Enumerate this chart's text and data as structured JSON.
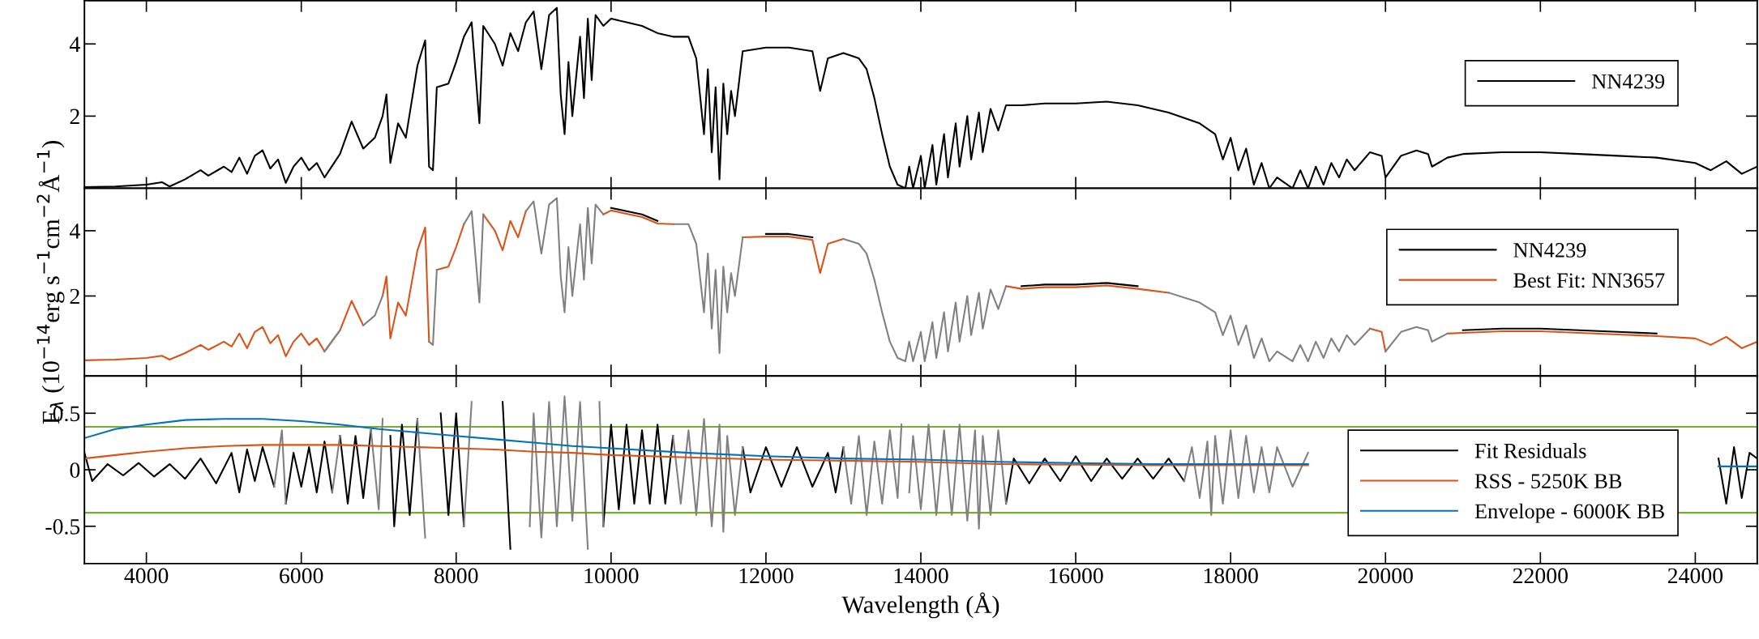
{
  "chart_data": [
    {
      "type": "line",
      "xlim": [
        3200,
        24800
      ],
      "ylim": [
        0,
        5.2
      ],
      "xticks": [
        4000,
        6000,
        8000,
        10000,
        12000,
        14000,
        16000,
        18000,
        20000,
        22000,
        24000
      ],
      "yticks": [
        2,
        4
      ],
      "tick_labels": "y",
      "legend": "right",
      "series": [
        {
          "name": "NN4239",
          "color": "#000000",
          "x": [
            3200,
            3600,
            4000,
            4200,
            4300,
            4500,
            4700,
            4800,
            5000,
            5100,
            5200,
            5300,
            5400,
            5500,
            5600,
            5700,
            5800,
            5900,
            6000,
            6100,
            6200,
            6300,
            6500,
            6650,
            6800,
            6950,
            7050,
            7100,
            7150,
            7250,
            7350,
            7500,
            7600,
            7650,
            7700,
            7750,
            7900,
            8000,
            8100,
            8200,
            8300,
            8350,
            8500,
            8600,
            8700,
            8800,
            8900,
            9000,
            9100,
            9200,
            9300,
            9350,
            9400,
            9450,
            9500,
            9600,
            9650,
            9700,
            9750,
            9800,
            9900,
            10000,
            10200,
            10400,
            10600,
            10800,
            11000,
            11100,
            11200,
            11250,
            11300,
            11350,
            11400,
            11450,
            11500,
            11550,
            11600,
            11700,
            12000,
            12300,
            12600,
            12700,
            12800,
            13000,
            13200,
            13300,
            13400,
            13500,
            13600,
            13700,
            13800,
            13850,
            13900,
            14000,
            14050,
            14150,
            14200,
            14300,
            14350,
            14450,
            14500,
            14600,
            14650,
            14750,
            14800,
            14900,
            15000,
            15100,
            15300,
            15600,
            16000,
            16400,
            16800,
            17200,
            17600,
            17800,
            17900,
            18000,
            18100,
            18200,
            18300,
            18400,
            18500,
            18600,
            18800,
            18900,
            19000,
            19100,
            19200,
            19300,
            19400,
            19500,
            19600,
            19800,
            19950,
            20000,
            20200,
            20400,
            20550,
            20600,
            20800,
            21000,
            21500,
            22000,
            22500,
            23000,
            23500,
            24000,
            24200,
            24400,
            24600,
            24800
          ],
          "values": [
            0.03,
            0.05,
            0.1,
            0.17,
            0.05,
            0.25,
            0.5,
            0.35,
            0.6,
            0.45,
            0.85,
            0.4,
            0.9,
            1.05,
            0.55,
            0.8,
            0.15,
            0.6,
            0.85,
            0.5,
            0.7,
            0.3,
            0.95,
            1.85,
            1.1,
            1.4,
            2.0,
            2.6,
            0.7,
            1.8,
            1.4,
            3.4,
            4.1,
            0.6,
            0.5,
            2.8,
            2.9,
            3.5,
            4.2,
            4.6,
            1.8,
            4.5,
            4.0,
            3.4,
            4.3,
            3.8,
            4.6,
            4.9,
            3.3,
            4.8,
            5.0,
            2.6,
            1.5,
            3.5,
            2.0,
            4.2,
            2.5,
            4.7,
            3.0,
            4.8,
            4.5,
            4.7,
            4.6,
            4.5,
            4.3,
            4.2,
            4.2,
            3.6,
            1.5,
            3.3,
            1.0,
            2.8,
            0.25,
            2.9,
            1.5,
            2.7,
            2.0,
            3.8,
            3.9,
            3.9,
            3.8,
            2.7,
            3.6,
            3.75,
            3.6,
            3.3,
            2.5,
            1.5,
            0.6,
            0.1,
            0.0,
            0.6,
            0.0,
            0.9,
            0.0,
            1.2,
            0.1,
            1.5,
            0.3,
            1.8,
            0.6,
            2.0,
            0.8,
            2.1,
            1.0,
            2.2,
            1.6,
            2.3,
            2.3,
            2.35,
            2.35,
            2.4,
            2.3,
            2.1,
            1.8,
            1.5,
            0.8,
            1.4,
            0.5,
            1.1,
            0.1,
            0.7,
            0.0,
            0.3,
            0.0,
            0.5,
            0.0,
            0.6,
            0.1,
            0.7,
            0.3,
            0.8,
            0.5,
            1.0,
            0.9,
            0.3,
            0.9,
            1.05,
            0.95,
            0.6,
            0.85,
            0.95,
            1.0,
            1.0,
            0.95,
            0.9,
            0.85,
            0.7,
            0.5,
            0.75,
            0.4,
            0.6
          ]
        }
      ]
    },
    {
      "type": "line",
      "xlim": [
        3200,
        24800
      ],
      "ylim": [
        -0.45,
        5.3
      ],
      "xticks": [
        4000,
        6000,
        8000,
        10000,
        12000,
        14000,
        16000,
        18000,
        20000,
        22000,
        24000
      ],
      "yticks": [
        2,
        4
      ],
      "tick_labels": "y",
      "legend": "right",
      "ylabel": "F$_{λ}$ (10$^{−14}$erg s$^{−1}$cm$^{−2}$Å$^{−1}$)",
      "series": [
        {
          "name": "NN4239",
          "color": "#000000",
          "x": [
            10000,
            10200,
            10400,
            10600,
            11500,
            12000,
            12300,
            12600,
            14000,
            15300,
            15600,
            16000,
            16400,
            16800,
            20000,
            21000,
            21500,
            22000,
            22500,
            23000,
            23500
          ],
          "values": [
            4.7,
            4.6,
            4.5,
            4.3,
            null,
            3.9,
            3.9,
            3.8,
            null,
            2.3,
            2.35,
            2.35,
            2.4,
            2.3,
            null,
            0.95,
            1.0,
            1.0,
            0.95,
            0.9,
            0.85
          ]
        },
        {
          "name": "Best Fit: NN3657",
          "color": "#d95319",
          "x": [
            3200,
            3600,
            4000,
            4200,
            4300,
            4500,
            4700,
            4800,
            5000,
            5100,
            5200,
            5300,
            5400,
            5500,
            5600,
            5700,
            5800,
            5900,
            6000,
            6100,
            6200,
            6300,
            6500,
            6650,
            6800,
            6950,
            7050,
            7100,
            7150,
            7250,
            7350,
            7500,
            7600,
            7650,
            7700,
            7750,
            7900,
            8000,
            8100,
            8200,
            8300,
            8350,
            8500,
            8600,
            8700,
            8800,
            8900,
            9000,
            9100,
            9200,
            9300,
            9350,
            9400,
            9450,
            9500,
            9600,
            9650,
            9700,
            9750,
            9800,
            9900,
            10000,
            10200,
            10400,
            10600,
            10800,
            11000,
            11100,
            11200,
            11250,
            11300,
            11350,
            11400,
            11450,
            11500,
            11550,
            11600,
            11700,
            12000,
            12300,
            12600,
            12700,
            12800,
            13000,
            13200,
            13300,
            13400,
            13500,
            13600,
            13700,
            13800,
            13850,
            13900,
            14000,
            14050,
            14150,
            14200,
            14300,
            14350,
            14450,
            14500,
            14600,
            14650,
            14750,
            14800,
            14900,
            15000,
            15100,
            15300,
            15600,
            16000,
            16400,
            16800,
            17200,
            17600,
            17800,
            17900,
            18000,
            18100,
            18200,
            18300,
            18400,
            18500,
            18600,
            18800,
            18900,
            19000,
            19100,
            19200,
            19300,
            19400,
            19500,
            19600,
            19800,
            19950,
            20000,
            20200,
            20400,
            20550,
            20600,
            20800,
            21000,
            21500,
            22000,
            22500,
            23000,
            23500,
            24000,
            24200,
            24400,
            24600,
            24800
          ],
          "values": [
            0.03,
            0.05,
            0.1,
            0.17,
            0.05,
            0.25,
            0.5,
            0.35,
            0.6,
            0.45,
            0.85,
            0.4,
            0.9,
            1.05,
            0.55,
            0.8,
            0.15,
            0.6,
            0.85,
            0.5,
            0.7,
            0.3,
            0.95,
            1.85,
            1.1,
            null,
            2.0,
            2.6,
            0.7,
            1.8,
            1.4,
            3.4,
            4.1,
            0.6,
            null,
            2.8,
            2.9,
            3.5,
            4.2,
            null,
            null,
            4.5,
            4.0,
            3.4,
            4.3,
            3.8,
            4.6,
            null,
            null,
            null,
            null,
            null,
            null,
            null,
            null,
            null,
            null,
            null,
            null,
            null,
            4.5,
            4.62,
            4.52,
            4.42,
            4.22,
            4.2,
            null,
            null,
            null,
            null,
            null,
            null,
            null,
            null,
            null,
            null,
            null,
            3.8,
            3.82,
            3.82,
            3.72,
            2.7,
            3.6,
            3.75,
            null,
            null,
            null,
            null,
            null,
            null,
            null,
            null,
            null,
            null,
            null,
            null,
            null,
            null,
            null,
            null,
            null,
            null,
            null,
            null,
            null,
            null,
            null,
            2.3,
            2.22,
            2.27,
            2.27,
            2.32,
            2.22,
            2.1,
            null,
            null,
            null,
            null,
            null,
            null,
            null,
            null,
            null,
            null,
            null,
            null,
            null,
            null,
            null,
            null,
            null,
            null,
            null,
            1.0,
            0.9,
            0.3,
            null,
            null,
            null,
            null,
            0.85,
            0.87,
            0.92,
            0.92,
            0.87,
            0.82,
            0.77,
            0.7,
            0.5,
            0.75,
            0.4,
            0.6
          ]
        },
        {
          "color": "#808080",
          "x": [
            6300,
            6500,
            6600,
            6800,
            6950,
            7050,
            7300,
            7650,
            7700,
            7750,
            7900,
            8100,
            8200,
            8300,
            8350,
            8600,
            8900,
            9000,
            9100,
            9200,
            9300,
            9350,
            9400,
            9450,
            9500,
            9600,
            9650,
            9700,
            9750,
            9800,
            9900,
            10300,
            10800,
            11000,
            11100,
            11200,
            11250,
            11300,
            11350,
            11400,
            11450,
            11500,
            11550,
            11600,
            11700,
            12300,
            13000,
            13200,
            13300,
            13400,
            13500,
            13600,
            13700,
            13800,
            13850,
            13900,
            14000,
            14050,
            14150,
            14200,
            14300,
            14350,
            14450,
            14500,
            14600,
            14650,
            14750,
            14800,
            14900,
            15000,
            15100,
            16000,
            17200,
            17600,
            17800,
            17900,
            18000,
            18100,
            18200,
            18300,
            18400,
            18500,
            18600,
            18800,
            18900,
            19000,
            19100,
            19200,
            19300,
            19400,
            19500,
            19600,
            19800,
            19900,
            20000,
            20200,
            20400,
            20550,
            20600,
            20800
          ],
          "values": [
            0.3,
            0.95,
            null,
            1.1,
            1.4,
            2.0,
            null,
            0.6,
            0.5,
            2.8,
            null,
            4.2,
            4.6,
            1.8,
            4.5,
            null,
            4.6,
            4.9,
            3.3,
            4.8,
            5.0,
            2.6,
            1.5,
            3.5,
            2.0,
            4.2,
            2.5,
            4.7,
            3.0,
            4.8,
            4.5,
            null,
            4.2,
            4.2,
            3.6,
            1.5,
            3.3,
            1.0,
            2.8,
            0.25,
            2.9,
            1.5,
            2.7,
            2.0,
            3.8,
            null,
            3.75,
            3.6,
            3.3,
            2.5,
            1.5,
            0.6,
            0.1,
            0.0,
            0.6,
            0.0,
            0.9,
            0.0,
            1.2,
            0.1,
            1.5,
            0.3,
            1.8,
            0.6,
            2.0,
            0.8,
            2.1,
            1.0,
            2.2,
            1.6,
            2.3,
            null,
            2.1,
            1.8,
            1.5,
            0.8,
            1.4,
            0.5,
            1.1,
            0.1,
            0.7,
            0.0,
            0.3,
            0.0,
            0.5,
            0.0,
            0.6,
            0.1,
            0.7,
            0.3,
            0.8,
            0.5,
            1.0,
            null,
            0.3,
            0.9,
            1.05,
            0.95,
            0.6,
            0.85
          ]
        }
      ]
    },
    {
      "type": "line",
      "xlim": [
        3200,
        24800
      ],
      "ylim": [
        -0.83,
        0.83
      ],
      "xticks": [
        4000,
        6000,
        8000,
        10000,
        12000,
        14000,
        16000,
        18000,
        20000,
        22000,
        24000
      ],
      "yticks": [
        -0.5,
        0,
        0.5
      ],
      "legend": "right",
      "xlabel": "Wavelength (Å)",
      "ref_lines": [
        {
          "axis": "y",
          "value": 0.38,
          "color": "#77ac30"
        },
        {
          "axis": "y",
          "value": -0.38,
          "color": "#77ac30"
        }
      ],
      "series": [
        {
          "name": "Fit Residuals",
          "color": "#000000",
          "x": [
            3200,
            3300,
            3500,
            3700,
            3900,
            4100,
            4300,
            4500,
            4700,
            4900,
            5100,
            5200,
            5300,
            5400,
            5500,
            5650,
            5750,
            5800,
            5900,
            6000,
            6100,
            6200,
            6300,
            6400,
            6450,
            6500,
            6600,
            6700,
            6800,
            6900,
            7000,
            7050,
            7100,
            7150,
            7200,
            7300,
            7400,
            7500,
            7600,
            7750,
            7800,
            7900,
            8000,
            8100,
            8200,
            8400,
            8500,
            8550,
            8600,
            8700,
            8800,
            8850,
            8900,
            9400,
            9900,
            10000,
            10100,
            10200,
            10300,
            10400,
            10500,
            10600,
            10700,
            10800,
            11200,
            11700,
            11800,
            12000,
            12200,
            12400,
            12600,
            12800,
            12900,
            13000,
            14000,
            15100,
            15200,
            15400,
            15600,
            15800,
            16000,
            16200,
            16400,
            16600,
            16800,
            17000,
            17200,
            17400,
            20000,
            24300,
            24400,
            24500,
            24600,
            24700,
            24800
          ],
          "values": [
            0.15,
            -0.1,
            0.05,
            -0.05,
            0.06,
            -0.06,
            0.05,
            -0.08,
            0.1,
            -0.12,
            0.15,
            -0.2,
            0.18,
            -0.1,
            0.2,
            -0.15,
            null,
            -0.3,
            0.15,
            -0.15,
            0.2,
            -0.2,
            0.25,
            -0.2,
            null,
            0.3,
            -0.3,
            0.3,
            -0.25,
            0.35,
            null,
            null,
            null,
            0.3,
            -0.5,
            0.4,
            -0.4,
            0.45,
            null,
            null,
            0.5,
            -0.4,
            0.5,
            -0.5,
            null,
            null,
            null,
            null,
            0.6,
            -0.7,
            null,
            null,
            null,
            null,
            -0.5,
            0.4,
            -0.35,
            0.4,
            -0.3,
            0.35,
            -0.3,
            0.4,
            -0.3,
            0.3,
            null,
            0.2,
            -0.2,
            0.2,
            -0.15,
            0.2,
            -0.15,
            0.15,
            -0.2,
            0.2,
            null,
            -0.3,
            0.1,
            -0.12,
            0.1,
            -0.1,
            0.12,
            -0.1,
            0.1,
            -0.08,
            0.1,
            -0.08,
            0.1,
            -0.1,
            null,
            0.1,
            -0.3,
            0.2,
            -0.25,
            0.15,
            0.1
          ]
        },
        {
          "color": "#808080",
          "x": [
            5650,
            5750,
            5800,
            6100,
            6400,
            6500,
            6700,
            6900,
            7000,
            7050,
            7300,
            7500,
            7600,
            7700,
            7750,
            7900,
            8100,
            8200,
            8300,
            8350,
            8400,
            8600,
            8900,
            8950,
            9000,
            9100,
            9200,
            9300,
            9400,
            9500,
            9600,
            9700,
            9750,
            9800,
            9850,
            9900,
            10300,
            10800,
            10900,
            11000,
            11100,
            11200,
            11300,
            11400,
            11450,
            11500,
            11600,
            11700,
            12300,
            13000,
            13100,
            13200,
            13300,
            13400,
            13500,
            13600,
            13700,
            13750,
            13800,
            13850,
            13900,
            14000,
            14100,
            14200,
            14300,
            14400,
            14500,
            14600,
            14700,
            14750,
            14800,
            14900,
            15000,
            15100,
            16000,
            17400,
            17500,
            17600,
            17700,
            17750,
            17800,
            17900,
            18000,
            18100,
            18200,
            18300,
            18400,
            18500,
            18600,
            18800,
            19000
          ],
          "values": [
            -0.15,
            0.35,
            -0.3,
            null,
            -0.2,
            0.3,
            null,
            0.35,
            -0.35,
            0.45,
            null,
            0.45,
            -0.6,
            null,
            null,
            null,
            -0.5,
            0.6,
            null,
            null,
            null,
            null,
            null,
            -0.5,
            0.5,
            -0.6,
            0.6,
            -0.5,
            0.65,
            -0.45,
            0.6,
            -0.7,
            null,
            null,
            0.6,
            -0.5,
            null,
            0.3,
            -0.3,
            0.35,
            -0.4,
            0.45,
            -0.5,
            0.4,
            -0.55,
            0.3,
            -0.4,
            0.2,
            null,
            0.2,
            -0.3,
            0.3,
            -0.4,
            0.25,
            -0.3,
            0.35,
            -0.25,
            0.4,
            null,
            -0.2,
            0.3,
            -0.35,
            0.4,
            -0.4,
            0.35,
            -0.4,
            0.4,
            -0.45,
            0.35,
            -0.52,
            0.3,
            -0.4,
            0.35,
            -0.3,
            null,
            -0.1,
            0.2,
            -0.25,
            0.25,
            -0.4,
            0.3,
            -0.3,
            0.35,
            -0.25,
            0.3,
            -0.2,
            0.2,
            -0.2,
            0.2,
            -0.15,
            0.15
          ]
        },
        {
          "name": "RSS - 5250K BB",
          "color": "#d95319",
          "x": [
            3200,
            3600,
            4000,
            4500,
            5000,
            5500,
            6000,
            6500,
            7000,
            7500,
            8000,
            8500,
            9000,
            9500,
            10000,
            11000,
            12000,
            13000,
            14000,
            15000,
            16000,
            17000,
            18000,
            19000
          ],
          "values": [
            0.1,
            0.13,
            0.16,
            0.19,
            0.21,
            0.22,
            0.22,
            0.22,
            0.21,
            0.2,
            0.19,
            0.18,
            0.16,
            0.15,
            0.13,
            0.11,
            0.09,
            0.08,
            0.07,
            0.05,
            0.045,
            0.04,
            0.04,
            0.04
          ]
        },
        {
          "name": "Envelope - 6000K BB",
          "color": "#0072bd",
          "x": [
            3200,
            3600,
            4000,
            4500,
            5000,
            5500,
            6000,
            6500,
            7000,
            7500,
            8000,
            8500,
            9000,
            9500,
            10000,
            11000,
            12000,
            13000,
            14000,
            15000,
            16000,
            17000,
            18000,
            19000,
            21000,
            24300,
            24800
          ],
          "values": [
            0.28,
            0.36,
            0.4,
            0.44,
            0.45,
            0.45,
            0.43,
            0.4,
            0.36,
            0.33,
            0.3,
            0.27,
            0.24,
            0.21,
            0.19,
            0.15,
            0.12,
            0.1,
            0.09,
            0.07,
            0.06,
            0.05,
            0.05,
            0.05,
            null,
            0.03,
            0.03
          ]
        }
      ]
    }
  ]
}
